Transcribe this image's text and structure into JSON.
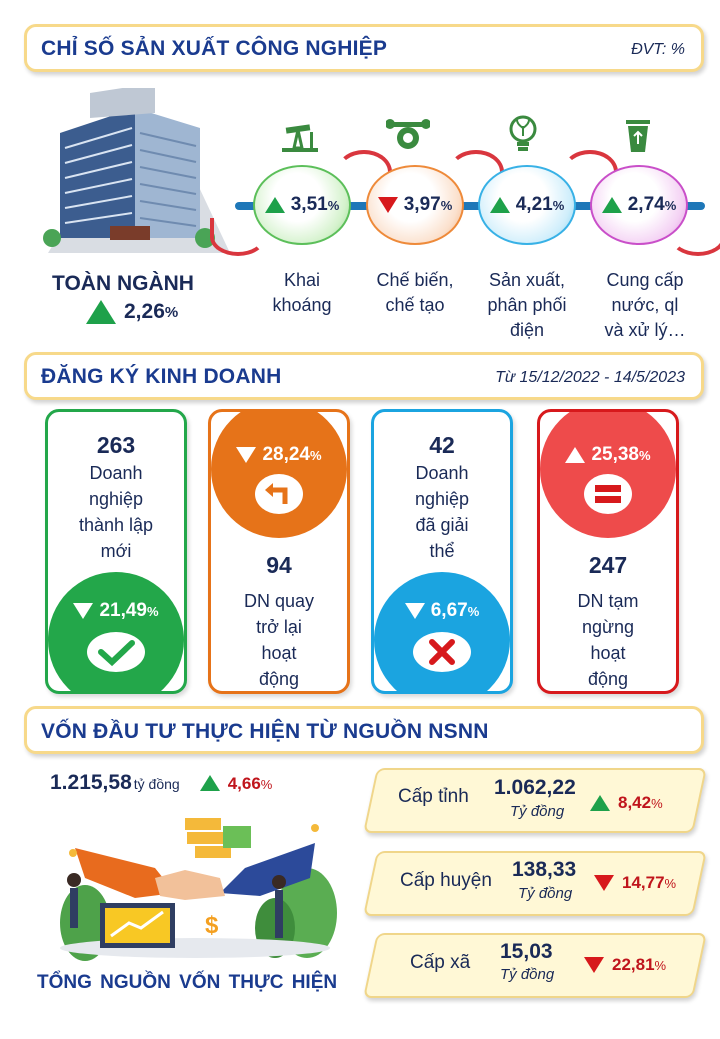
{
  "colors": {
    "accent": "#1a3b8f",
    "up": "#1ea14a",
    "down": "#d7191c",
    "banner_border": "#f7d98a"
  },
  "section1": {
    "title": "CHỈ SỐ SẢN XUẤT CÔNG NGHIỆP",
    "unit": "ĐVT: %",
    "overall": {
      "label": "TOÀN NGÀNH",
      "value": "2,26",
      "unit": "%",
      "trend": "up"
    },
    "sectors": [
      {
        "label_lines": [
          "Khai",
          "khoáng"
        ],
        "value": "3,51",
        "unit": "%",
        "trend": "up",
        "icon": "oil-pump-icon",
        "color": "#2fb24c"
      },
      {
        "label_lines": [
          "Chế biến,",
          "chế tạo"
        ],
        "value": "3,97",
        "unit": "%",
        "trend": "down",
        "icon": "wrench-gear-icon",
        "color": "#ef7d22"
      },
      {
        "label_lines": [
          "Sản xuất,",
          "phân phối",
          "điện"
        ],
        "value": "4,21",
        "unit": "%",
        "trend": "up",
        "icon": "light-bulb-icon",
        "color": "#22a7df"
      },
      {
        "label_lines": [
          "Cung cấp",
          "nước, ql",
          "và xử lý…"
        ],
        "value": "2,74",
        "unit": "%",
        "trend": "up",
        "icon": "recycle-bin-icon",
        "color": "#c43cc4"
      }
    ]
  },
  "section2": {
    "title": "ĐĂNG KÝ KINH DOANH",
    "period": "Từ 15/12/2022 - 14/5/2023",
    "cards": [
      {
        "number": "263",
        "label_lines": [
          "Doanh",
          "nghiệp",
          "thành lập",
          "mới"
        ],
        "change": "21,49",
        "unit": "%",
        "trend": "down",
        "icon": "check-icon",
        "color": "#23a74a"
      },
      {
        "number": "94",
        "label_lines": [
          "DN quay",
          "trở lại",
          "hoạt",
          "động"
        ],
        "change": "28,24",
        "unit": "%",
        "trend": "down",
        "icon": "return-arrow-icon",
        "color": "#e67319"
      },
      {
        "number": "42",
        "label_lines": [
          "Doanh",
          "nghiệp",
          "đã giải",
          "thể"
        ],
        "change": "6,67",
        "unit": "%",
        "trend": "down",
        "icon": "close-x-icon",
        "color": "#1ba4e0"
      },
      {
        "number": "247",
        "label_lines": [
          "DN tạm",
          "ngừng",
          "hoạt",
          "động"
        ],
        "change": "25,38",
        "unit": "%",
        "trend": "up",
        "icon": "pause-equal-icon",
        "color": "#ee4b4b"
      }
    ]
  },
  "section3": {
    "title": "VỐN ĐẦU TƯ THỰC HIỆN TỪ NGUỒN NSNN",
    "total": {
      "value": "1.215,58",
      "unit": "tỷ đồng",
      "change": "4,66",
      "change_unit": "%",
      "trend": "up"
    },
    "caption": "TỔNG NGUỒN VỐN THỰC HIỆN",
    "levels": [
      {
        "label": "Cấp tỉnh",
        "value": "1.062,22",
        "unit": "Tỷ đồng",
        "change": "8,42",
        "change_unit": "%",
        "trend": "up"
      },
      {
        "label": "Cấp huyện",
        "value": "138,33",
        "unit": "Tỷ đồng",
        "change": "14,77",
        "change_unit": "%",
        "trend": "down"
      },
      {
        "label": "Cấp xã",
        "value": "15,03",
        "unit": "Tỷ đồng",
        "change": "22,81",
        "change_unit": "%",
        "trend": "down"
      }
    ]
  }
}
